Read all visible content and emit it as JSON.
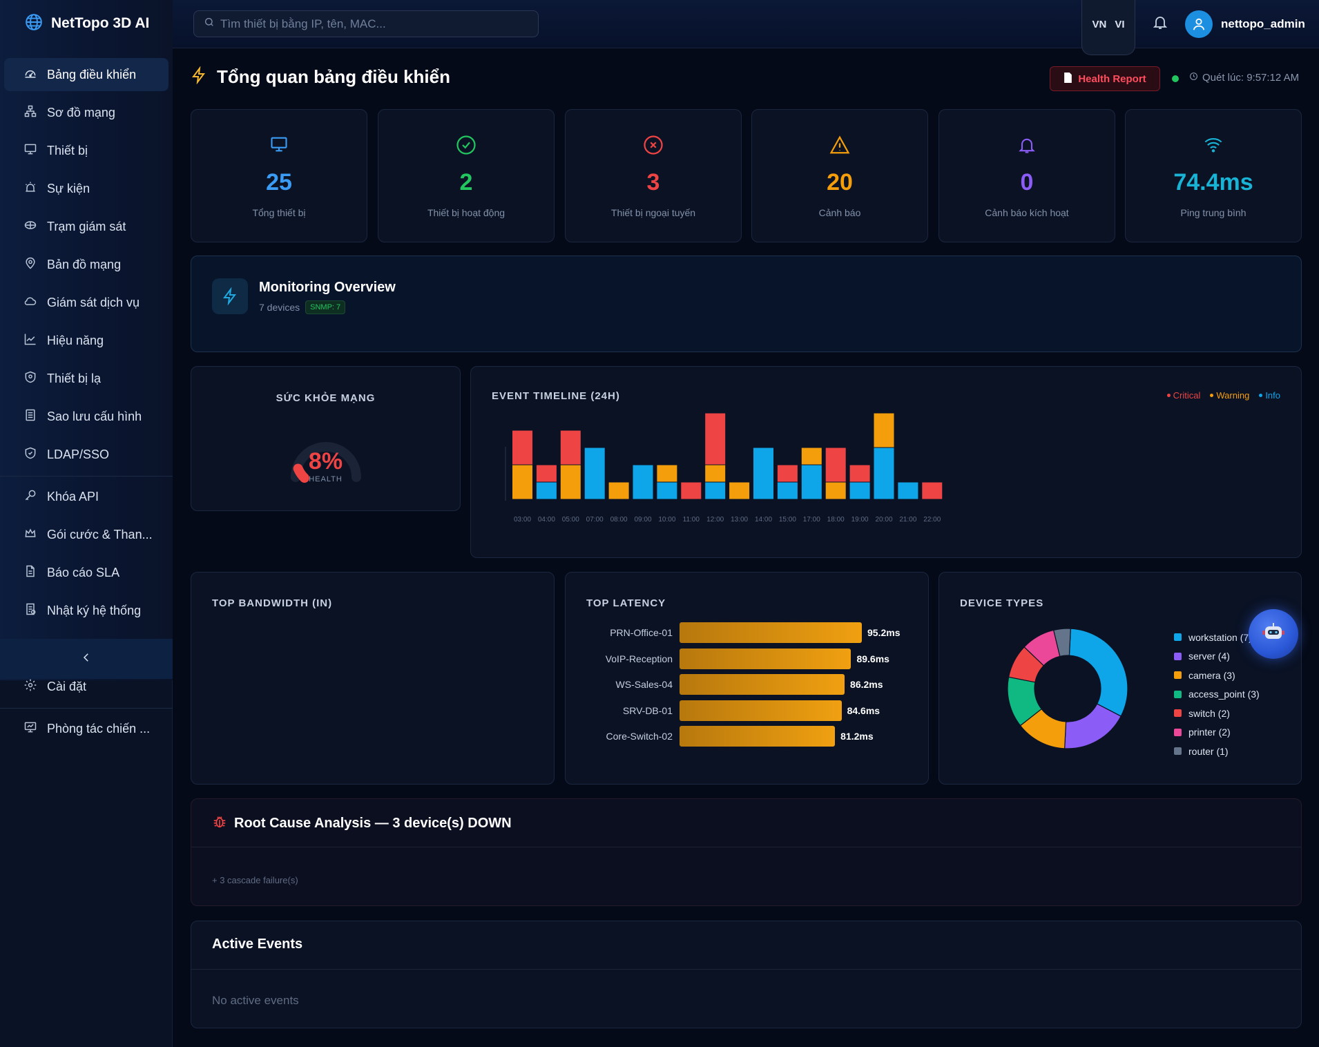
{
  "app": {
    "name": "NetTopo 3D AI"
  },
  "search": {
    "placeholder": "Tìm thiết bị bằng IP, tên, MAC..."
  },
  "lang": {
    "flag": "VN",
    "code": "VI"
  },
  "user": {
    "name": "nettopo_admin"
  },
  "sidebar": {
    "items": [
      {
        "label": "Bảng điều khiển",
        "icon": "dashboard-icon",
        "active": true
      },
      {
        "label": "Sơ đồ mạng",
        "icon": "topology-icon"
      },
      {
        "label": "Thiết bị",
        "icon": "monitor-icon"
      },
      {
        "label": "Sự kiện",
        "icon": "alarm-icon"
      },
      {
        "label": "Trạm giám sát",
        "icon": "station-icon"
      },
      {
        "label": "Bản đồ mạng",
        "icon": "map-pin-icon"
      },
      {
        "label": "Giám sát dịch vụ",
        "icon": "cloud-icon"
      },
      {
        "label": "Hiệu năng",
        "icon": "chart-line-icon"
      },
      {
        "label": "Thiết bị lạ",
        "icon": "shield-alert-icon"
      },
      {
        "label": "Sao lưu cấu hình",
        "icon": "archive-icon"
      },
      {
        "label": "LDAP/SSO",
        "icon": "shield-check-icon"
      },
      {
        "label": "Khóa API",
        "icon": "key-icon"
      },
      {
        "label": "Gói cước & Than...",
        "icon": "crown-icon"
      },
      {
        "label": "Báo cáo SLA",
        "icon": "file-icon"
      },
      {
        "label": "Nhật ký hệ thống",
        "icon": "log-icon"
      },
      {
        "label": "Cài đặt",
        "icon": "gear-icon"
      },
      {
        "label": "Phòng tác chiến ...",
        "icon": "presentation-icon"
      }
    ]
  },
  "page": {
    "title": "Tổng quan bảng điều khiển",
    "health_report": "Health Report",
    "scan_time": "Quét lúc: 9:57:12 AM"
  },
  "stats": [
    {
      "value": "25",
      "label": "Tổng thiết bị",
      "color": "#3b9cf5",
      "icon": "monitor-icon"
    },
    {
      "value": "2",
      "label": "Thiết bị hoạt động",
      "color": "#22c55e",
      "icon": "check-circle-icon"
    },
    {
      "value": "3",
      "label": "Thiết bị ngoại tuyến",
      "color": "#ef4444",
      "icon": "x-circle-icon"
    },
    {
      "value": "20",
      "label": "Cảnh báo",
      "color": "#f59e0b",
      "icon": "warning-icon"
    },
    {
      "value": "0",
      "label": "Cảnh báo kích hoạt",
      "color": "#8b5cf6",
      "icon": "bell-icon"
    },
    {
      "value": "74.4ms",
      "label": "Ping trung bình",
      "color": "#19b3d6",
      "icon": "wifi-icon"
    }
  ],
  "monitoring": {
    "title": "Monitoring Overview",
    "devices": "7 devices",
    "badge": "SNMP: 7"
  },
  "health": {
    "title": "SỨC KHỎE MẠNG",
    "value": "8%",
    "label": "HEALTH",
    "percent": 8
  },
  "timeline": {
    "title": "EVENT TIMELINE (24H)",
    "legend": [
      {
        "label": "Critical",
        "color": "#ef4444"
      },
      {
        "label": "Warning",
        "color": "#f59e0b"
      },
      {
        "label": "Info",
        "color": "#0ea5e9"
      }
    ]
  },
  "bandwidth": {
    "title": "TOP BANDWIDTH (IN)"
  },
  "latency": {
    "title": "TOP LATENCY",
    "rows": [
      {
        "name": "PRN-Office-01",
        "value": "95.2ms"
      },
      {
        "name": "VoIP-Reception",
        "value": "89.6ms"
      },
      {
        "name": "WS-Sales-04",
        "value": "86.2ms"
      },
      {
        "name": "SRV-DB-01",
        "value": "84.6ms"
      },
      {
        "name": "Core-Switch-02",
        "value": "81.2ms"
      }
    ]
  },
  "device_types": {
    "title": "DEVICE TYPES",
    "items": [
      {
        "label": "workstation (7)",
        "color": "#0ea5e9"
      },
      {
        "label": "server (4)",
        "color": "#8b5cf6"
      },
      {
        "label": "camera (3)",
        "color": "#f59e0b"
      },
      {
        "label": "access_point (3)",
        "color": "#10b981"
      },
      {
        "label": "switch (2)",
        "color": "#ef4444"
      },
      {
        "label": "printer (2)",
        "color": "#ec4899"
      },
      {
        "label": "router (1)",
        "color": "#64748b"
      }
    ]
  },
  "rca": {
    "title": "Root Cause Analysis — 3 device(s) DOWN",
    "note": "+ 3 cascade failure(s)"
  },
  "events": {
    "title": "Active Events",
    "empty": "No active events"
  },
  "chart_data": [
    {
      "type": "bar",
      "title": "EVENT TIMELINE (24H)",
      "categories": [
        "03:00",
        "04:00",
        "05:00",
        "07:00",
        "08:00",
        "09:00",
        "10:00",
        "11:00",
        "12:00",
        "13:00",
        "14:00",
        "15:00",
        "17:00",
        "18:00",
        "19:00",
        "20:00",
        "21:00",
        "22:00"
      ],
      "series": [
        {
          "name": "Info",
          "color": "#0ea5e9",
          "values": [
            0,
            1,
            0,
            3,
            0,
            2,
            1,
            0,
            1,
            0,
            3,
            1,
            2,
            0,
            1,
            3,
            1,
            0
          ]
        },
        {
          "name": "Warning",
          "color": "#f59e0b",
          "values": [
            2,
            0,
            2,
            0,
            1,
            0,
            1,
            0,
            1,
            1,
            0,
            0,
            1,
            1,
            0,
            2,
            0,
            0
          ]
        },
        {
          "name": "Critical",
          "color": "#ef4444",
          "values": [
            2,
            1,
            2,
            0,
            0,
            0,
            0,
            1,
            3,
            0,
            0,
            1,
            0,
            2,
            1,
            0,
            0,
            1
          ]
        }
      ],
      "stacked": true,
      "ylim": [
        0,
        5
      ],
      "grid": false,
      "legend": "top-right"
    },
    {
      "type": "pie",
      "title": "DEVICE TYPES",
      "donut": true,
      "labels": [
        "workstation",
        "server",
        "camera",
        "access_point",
        "switch",
        "printer",
        "router"
      ],
      "values": [
        7,
        4,
        3,
        3,
        2,
        2,
        1
      ]
    },
    {
      "type": "bar",
      "title": "TOP LATENCY",
      "orientation": "horizontal",
      "categories": [
        "PRN-Office-01",
        "VoIP-Reception",
        "WS-Sales-04",
        "SRV-DB-01",
        "Core-Switch-02"
      ],
      "values": [
        95.2,
        89.6,
        86.2,
        84.6,
        81.2
      ],
      "unit": "ms"
    }
  ]
}
